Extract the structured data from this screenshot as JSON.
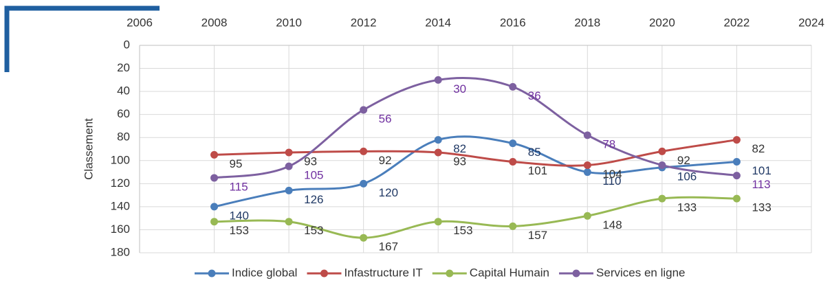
{
  "chart_data": {
    "type": "line",
    "y_label": "Classement",
    "x": [
      2008,
      2010,
      2012,
      2014,
      2016,
      2018,
      2020,
      2022
    ],
    "xlim": [
      2006,
      2024
    ],
    "xticks": [
      2006,
      2008,
      2010,
      2012,
      2014,
      2016,
      2018,
      2020,
      2022,
      2024
    ],
    "ylim": [
      0,
      180
    ],
    "yticks": [
      0,
      20,
      40,
      60,
      80,
      100,
      120,
      140,
      160,
      180
    ],
    "y_inverted": true,
    "grid": true,
    "smooth": true,
    "legend": "bottom",
    "series": [
      {
        "name": "Indice global",
        "color": "#4a7ebb",
        "label_color": "#1f3864",
        "values": [
          140,
          126,
          120,
          82,
          85,
          110,
          106,
          101
        ]
      },
      {
        "name": "Infastructure IT",
        "color": "#be4b48",
        "label_color": "#333333",
        "values": [
          95,
          93,
          92,
          93,
          101,
          104,
          92,
          82
        ]
      },
      {
        "name": "Capital Humain",
        "color": "#98b954",
        "label_color": "#333333",
        "values": [
          153,
          153,
          167,
          153,
          157,
          148,
          133,
          133
        ]
      },
      {
        "name": "Services en ligne",
        "color": "#7d60a0",
        "label_color": "#7030a0",
        "values": [
          115,
          105,
          56,
          30,
          36,
          78,
          104,
          113
        ],
        "value_labels": [
          "115",
          "105",
          "56",
          "30",
          "36",
          "78",
          null,
          "113"
        ]
      }
    ]
  }
}
